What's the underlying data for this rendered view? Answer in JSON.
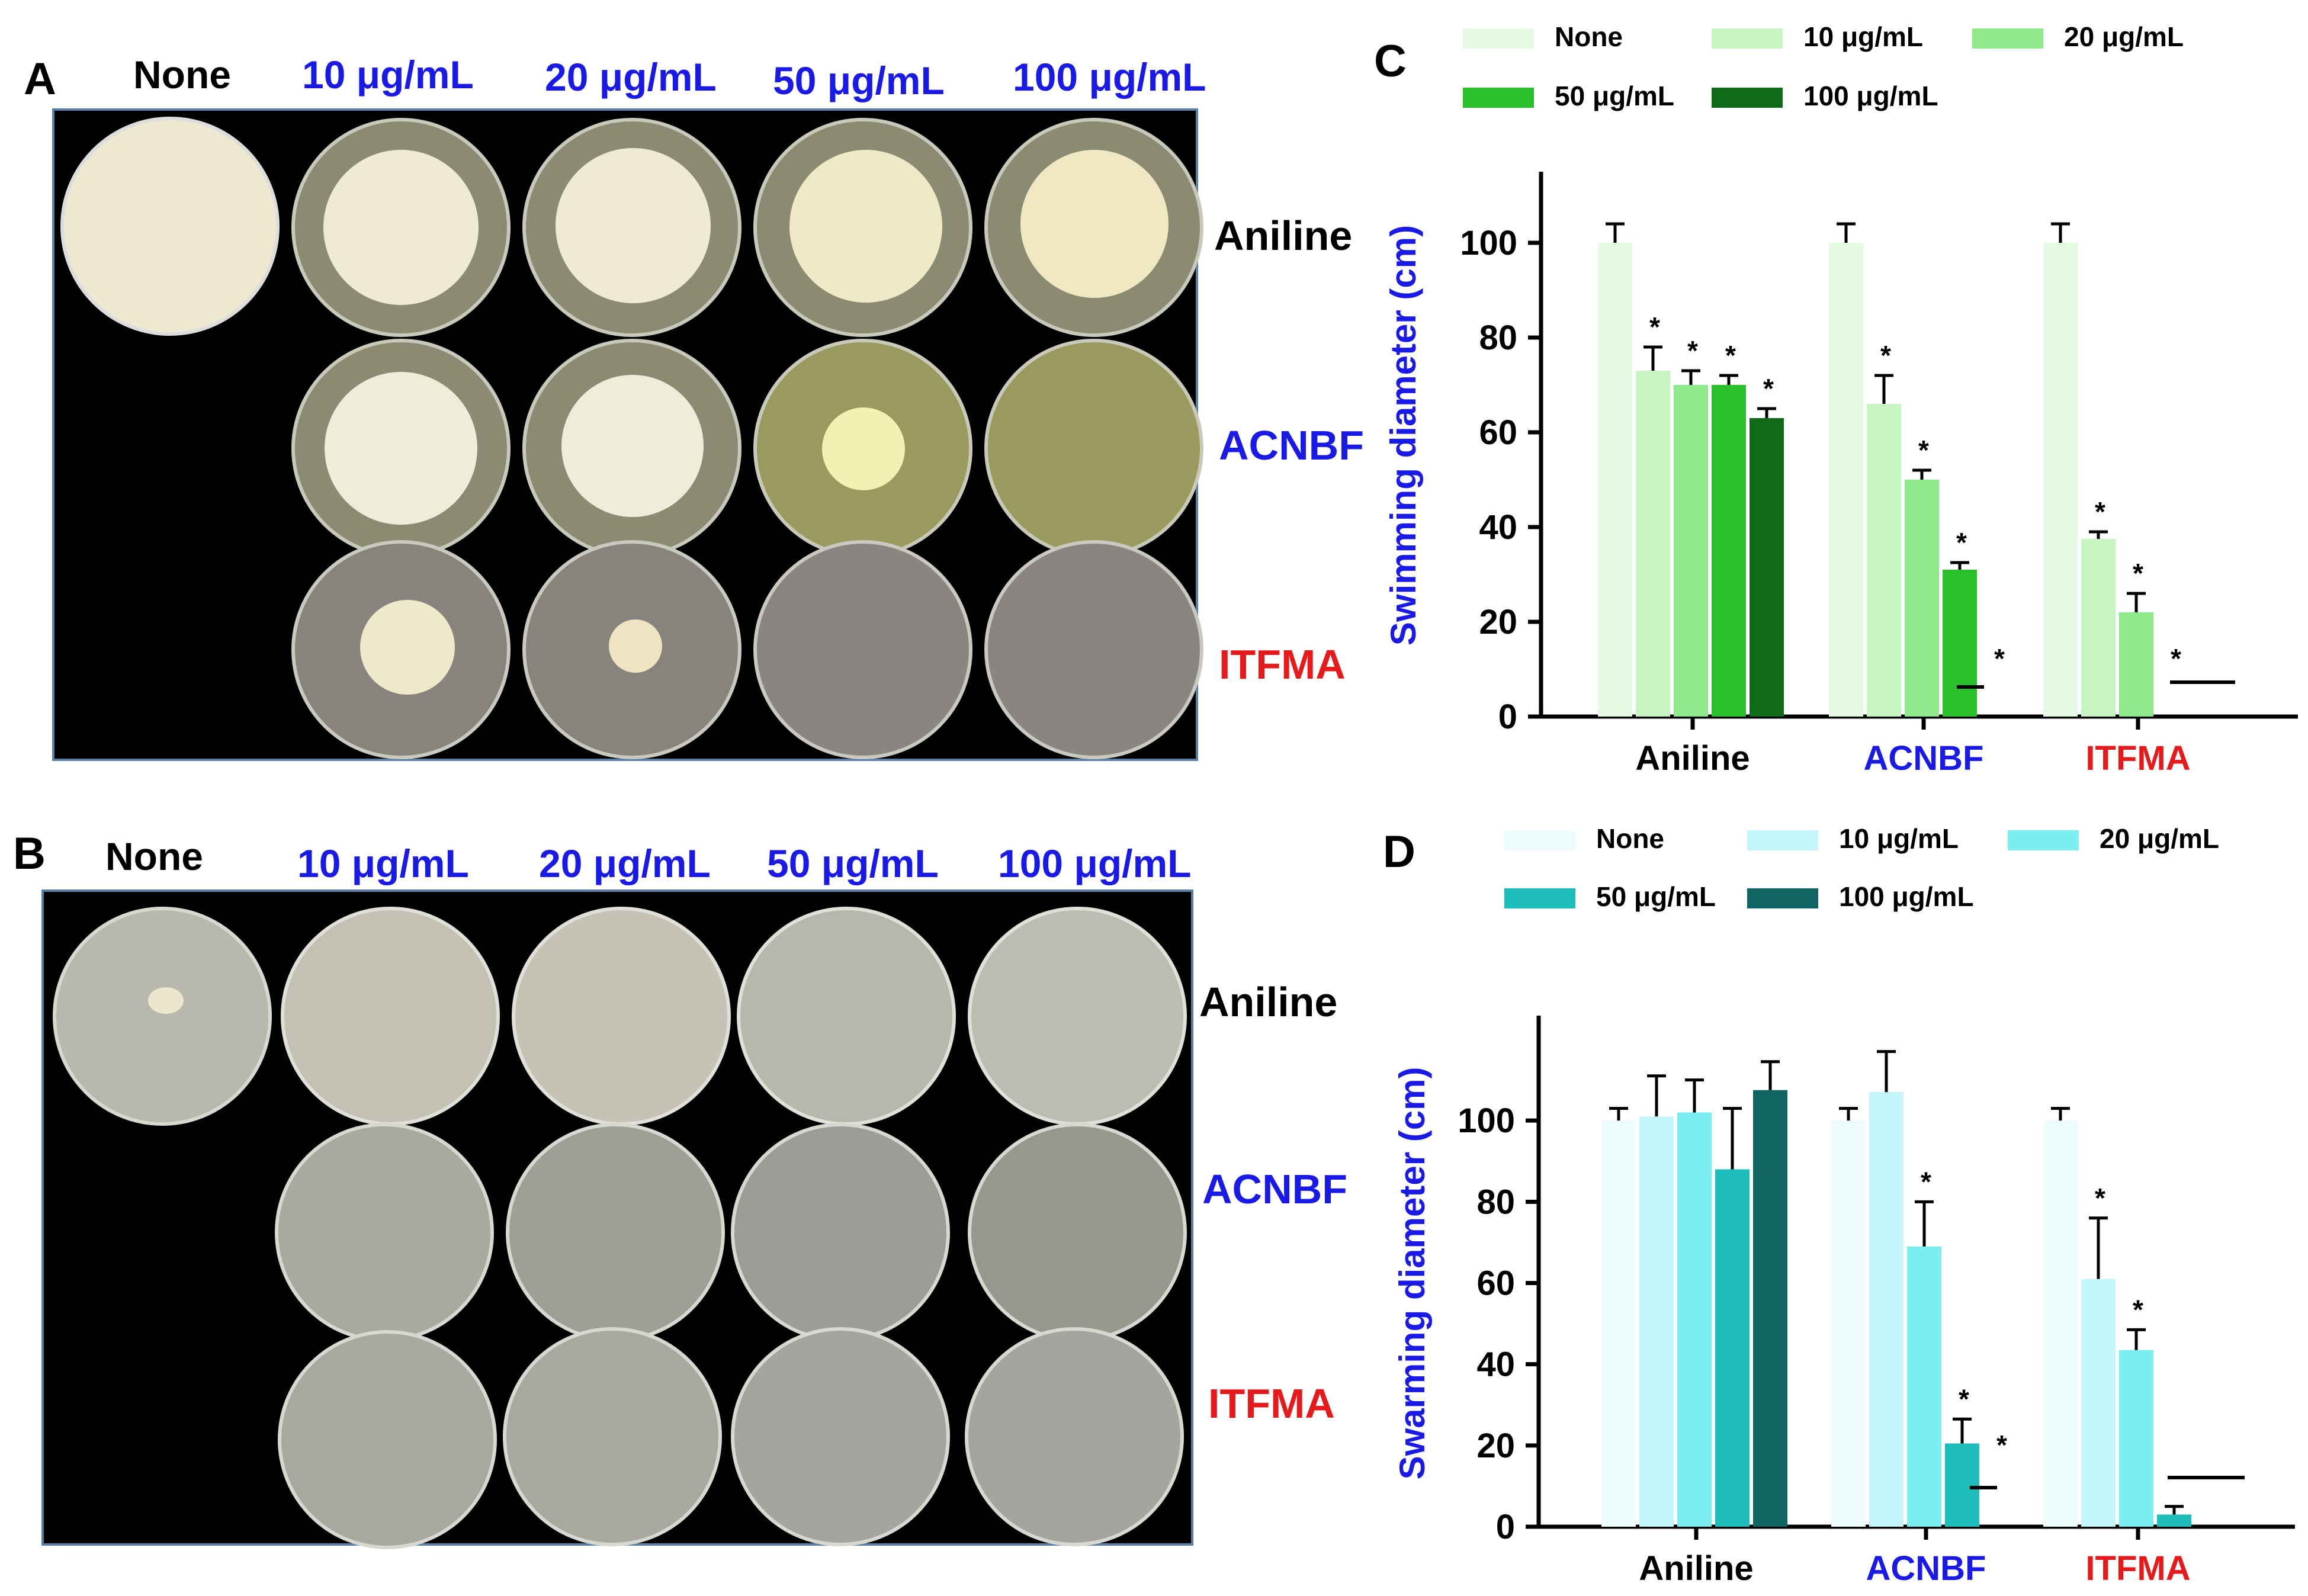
{
  "panel_a": {
    "letter": "A",
    "col_headers": [
      "None",
      "10 μg/mL",
      "20 μg/mL",
      "50 μg/mL",
      "100 μg/mL"
    ],
    "row_headers": [
      "Aniline",
      "ACNBF",
      "ITFMA"
    ],
    "colors": {
      "none_header": "#000000",
      "conc_header": "#1a1ae6",
      "aniline": "#000000",
      "acnbf": "#1a1ae6",
      "itfma": "#e61a1a"
    }
  },
  "panel_b": {
    "letter": "B",
    "col_headers": [
      "None",
      "10 μg/mL",
      "20 μg/mL",
      "50 μg/mL",
      "100 μg/mL"
    ],
    "row_headers": [
      "Aniline",
      "ACNBF",
      "ITFMA"
    ]
  },
  "chart_c": {
    "letter": "C",
    "legend": [
      "None",
      "10 μg/mL",
      "20 μg/mL",
      "50 μg/mL",
      "100 μg/mL"
    ],
    "ylabel": "Swimming diameter (cm)",
    "yticks": [
      "0",
      "20",
      "40",
      "60",
      "80",
      "100"
    ],
    "categories": [
      "Aniline",
      "ACNBF",
      "ITFMA"
    ],
    "star": "*"
  },
  "chart_d": {
    "letter": "D",
    "legend": [
      "None",
      "10 μg/mL",
      "20 μg/mL",
      "50 μg/mL",
      "100 μg/mL"
    ],
    "ylabel": "Swarming diameter (cm)",
    "yticks": [
      "0",
      "20",
      "40",
      "60",
      "80",
      "100"
    ],
    "categories": [
      "Aniline",
      "ACNBF",
      "ITFMA"
    ],
    "star": "*"
  },
  "chart_data": [
    {
      "type": "bar",
      "panel": "C",
      "ylabel": "Swimming diameter (cm)",
      "ylim": [
        0,
        110
      ],
      "categories": [
        "Aniline",
        "ACNBF",
        "ITFMA"
      ],
      "category_colors": [
        "#000000",
        "#1a1ae6",
        "#e61a1a"
      ],
      "series": [
        {
          "name": "None",
          "color": "#e4fbe2",
          "values": [
            100,
            100,
            100
          ],
          "errors": [
            4,
            4,
            4
          ],
          "significant": [
            false,
            false,
            false
          ]
        },
        {
          "name": "10 μg/mL",
          "color": "#c6f5c2",
          "values": [
            73,
            66,
            37.5
          ],
          "errors": [
            5,
            6,
            1.5
          ],
          "significant": [
            true,
            true,
            true
          ]
        },
        {
          "name": "20 μg/mL",
          "color": "#8fe88a",
          "values": [
            70,
            50,
            22
          ],
          "errors": [
            3,
            2,
            4
          ],
          "significant": [
            true,
            true,
            true
          ]
        },
        {
          "name": "50 μg/mL",
          "color": "#2cbf2c",
          "values": [
            70,
            31,
            0
          ],
          "errors": [
            2,
            1.5,
            0
          ],
          "significant": [
            true,
            true,
            true
          ]
        },
        {
          "name": "100 μg/mL",
          "color": "#0f6b1a",
          "values": [
            63,
            0,
            0
          ],
          "errors": [
            2,
            0,
            0
          ],
          "significant": [
            true,
            true,
            false
          ]
        }
      ],
      "grid": false,
      "legend_position": "top"
    },
    {
      "type": "bar",
      "panel": "D",
      "ylabel": "Swarming diameter (cm)",
      "ylim": [
        0,
        120
      ],
      "categories": [
        "Aniline",
        "ACNBF",
        "ITFMA"
      ],
      "category_colors": [
        "#000000",
        "#1a1ae6",
        "#e61a1a"
      ],
      "series": [
        {
          "name": "None",
          "color": "#eefcfd",
          "values": [
            100,
            100,
            100
          ],
          "errors": [
            3,
            3,
            3
          ],
          "significant": [
            false,
            false,
            false
          ]
        },
        {
          "name": "10 μg/mL",
          "color": "#c4f5fa",
          "values": [
            101,
            107,
            61
          ],
          "errors": [
            10,
            10,
            15
          ],
          "significant": [
            false,
            false,
            true
          ]
        },
        {
          "name": "20 μg/mL",
          "color": "#7aeef0",
          "values": [
            102,
            69,
            43.5
          ],
          "errors": [
            8,
            11,
            5
          ],
          "significant": [
            false,
            true,
            true
          ]
        },
        {
          "name": "50 μg/mL",
          "color": "#1fbcbc",
          "values": [
            88,
            20.5,
            3
          ],
          "errors": [
            15,
            6,
            2
          ],
          "significant": [
            false,
            true,
            false
          ]
        },
        {
          "name": "100 μg/mL",
          "color": "#0f6464",
          "values": [
            107.5,
            0,
            0
          ],
          "errors": [
            7,
            0,
            0
          ],
          "significant": [
            false,
            true,
            false
          ]
        }
      ],
      "grid": false,
      "legend_position": "top"
    }
  ]
}
